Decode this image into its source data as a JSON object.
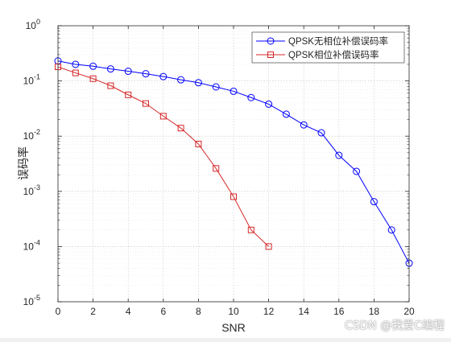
{
  "chart_data": {
    "type": "line",
    "title": "",
    "xlabel": "SNR",
    "ylabel": "误码率",
    "xlim": [
      0,
      20
    ],
    "ylim": [
      1e-05,
      1
    ],
    "yscale": "log",
    "grid": true,
    "legend_position": "top-right",
    "xticks": [
      "0",
      "2",
      "4",
      "6",
      "8",
      "10",
      "12",
      "14",
      "16",
      "18",
      "20"
    ],
    "yticks": [
      {
        "base": "10",
        "exp": "0"
      },
      {
        "base": "10",
        "exp": "-1"
      },
      {
        "base": "10",
        "exp": "-2"
      },
      {
        "base": "10",
        "exp": "-3"
      },
      {
        "base": "10",
        "exp": "-4"
      },
      {
        "base": "10",
        "exp": "-5"
      }
    ],
    "series": [
      {
        "name": "QPSK无相位补偿误码率",
        "color": "#0000ff",
        "marker": "circle",
        "x": [
          0,
          1,
          2,
          3,
          4,
          5,
          6,
          7,
          8,
          9,
          10,
          11,
          12,
          13,
          14,
          15,
          16,
          17,
          18,
          19,
          20
        ],
        "y": [
          0.23,
          0.2,
          0.185,
          0.165,
          0.15,
          0.135,
          0.12,
          0.105,
          0.093,
          0.078,
          0.065,
          0.05,
          0.038,
          0.025,
          0.016,
          0.0115,
          0.0045,
          0.0023,
          0.00065,
          0.0002,
          5e-05
        ]
      },
      {
        "name": "QPSK相位补偿误码率",
        "color": "#d62728",
        "marker": "square",
        "x": [
          0,
          1,
          2,
          3,
          4,
          5,
          6,
          7,
          8,
          9,
          10,
          11,
          12
        ],
        "y": [
          0.18,
          0.14,
          0.11,
          0.082,
          0.056,
          0.039,
          0.023,
          0.014,
          0.0072,
          0.0026,
          0.0008,
          0.0002,
          0.0001
        ]
      }
    ]
  },
  "watermark": "CSDN @我爱C编程"
}
